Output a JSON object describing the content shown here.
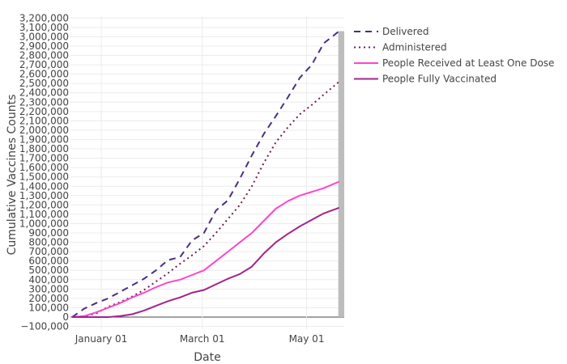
{
  "chart_data": {
    "type": "line",
    "title": "",
    "xlabel": "Date",
    "ylabel": "Cumulative Vaccines Counts",
    "xlim": [
      "2020-12-14",
      "2021-05-23"
    ],
    "ylim": [
      -130000,
      3220000
    ],
    "x_ticks": [
      {
        "date": "2021-01-01",
        "label": "January 01"
      },
      {
        "date": "2021-03-01",
        "label": "March 01"
      },
      {
        "date": "2021-05-01",
        "label": "May 01"
      }
    ],
    "y_ticks": [
      -100000,
      0,
      100000,
      200000,
      300000,
      400000,
      500000,
      600000,
      700000,
      800000,
      900000,
      1000000,
      1100000,
      1200000,
      1300000,
      1400000,
      1500000,
      1600000,
      1700000,
      1800000,
      1900000,
      2000000,
      2100000,
      2200000,
      2300000,
      2400000,
      2500000,
      2600000,
      2700000,
      2800000,
      2900000,
      3000000,
      3100000,
      3200000
    ],
    "grid": true,
    "legend": "top-right",
    "highlight_bar": {
      "date_from": "2021-05-20",
      "value": 3060000,
      "color": "#bdbdbd"
    },
    "series": [
      {
        "name": "Delivered",
        "color": "#4b2e83",
        "dash": "8,6",
        "x": [
          "2020-12-15",
          "2020-12-22",
          "2020-12-29",
          "2021-01-05",
          "2021-01-12",
          "2021-01-19",
          "2021-01-26",
          "2021-02-02",
          "2021-02-09",
          "2021-02-16",
          "2021-02-23",
          "2021-03-02",
          "2021-03-09",
          "2021-03-16",
          "2021-03-23",
          "2021-03-30",
          "2021-04-06",
          "2021-04-13",
          "2021-04-20",
          "2021-04-27",
          "2021-05-04",
          "2021-05-11",
          "2021-05-20"
        ],
        "y": [
          0,
          90000,
          150000,
          200000,
          270000,
          340000,
          410000,
          500000,
          610000,
          640000,
          820000,
          900000,
          1140000,
          1250000,
          1480000,
          1730000,
          1960000,
          2150000,
          2350000,
          2560000,
          2700000,
          2930000,
          3060000
        ]
      },
      {
        "name": "Administered",
        "color": "#6b1f4d",
        "dash": "2,4",
        "x": [
          "2020-12-15",
          "2020-12-22",
          "2020-12-29",
          "2021-01-05",
          "2021-01-12",
          "2021-01-19",
          "2021-01-26",
          "2021-02-02",
          "2021-02-09",
          "2021-02-16",
          "2021-02-23",
          "2021-03-02",
          "2021-03-09",
          "2021-03-16",
          "2021-03-23",
          "2021-03-30",
          "2021-04-06",
          "2021-04-13",
          "2021-04-20",
          "2021-04-27",
          "2021-05-04",
          "2021-05-11",
          "2021-05-20"
        ],
        "y": [
          0,
          10000,
          40000,
          110000,
          160000,
          220000,
          290000,
          380000,
          470000,
          570000,
          660000,
          760000,
          900000,
          1050000,
          1200000,
          1400000,
          1650000,
          1870000,
          2030000,
          2170000,
          2270000,
          2380000,
          2520000
        ]
      },
      {
        "name": "People Received at Least One Dose",
        "color": "#ff45c8",
        "dash": "",
        "x": [
          "2020-12-15",
          "2020-12-22",
          "2020-12-29",
          "2021-01-05",
          "2021-01-12",
          "2021-01-19",
          "2021-01-26",
          "2021-02-02",
          "2021-02-09",
          "2021-02-16",
          "2021-02-23",
          "2021-03-02",
          "2021-03-09",
          "2021-03-16",
          "2021-03-23",
          "2021-03-30",
          "2021-04-06",
          "2021-04-13",
          "2021-04-20",
          "2021-04-27",
          "2021-05-04",
          "2021-05-11",
          "2021-05-20"
        ],
        "y": [
          0,
          10000,
          50000,
          100000,
          150000,
          210000,
          260000,
          320000,
          370000,
          400000,
          450000,
          500000,
          600000,
          700000,
          800000,
          900000,
          1030000,
          1160000,
          1240000,
          1300000,
          1340000,
          1380000,
          1450000
        ]
      },
      {
        "name": "People Fully Vaccinated",
        "color": "#a3248a",
        "dash": "",
        "x": [
          "2020-12-15",
          "2021-01-05",
          "2021-01-12",
          "2021-01-19",
          "2021-01-26",
          "2021-02-02",
          "2021-02-09",
          "2021-02-16",
          "2021-02-23",
          "2021-03-02",
          "2021-03-09",
          "2021-03-16",
          "2021-03-23",
          "2021-03-30",
          "2021-04-06",
          "2021-04-13",
          "2021-04-20",
          "2021-04-27",
          "2021-05-04",
          "2021-05-11",
          "2021-05-20"
        ],
        "y": [
          0,
          0,
          10000,
          30000,
          70000,
          120000,
          170000,
          210000,
          260000,
          290000,
          350000,
          410000,
          460000,
          540000,
          680000,
          800000,
          890000,
          970000,
          1040000,
          1110000,
          1170000
        ]
      }
    ]
  }
}
